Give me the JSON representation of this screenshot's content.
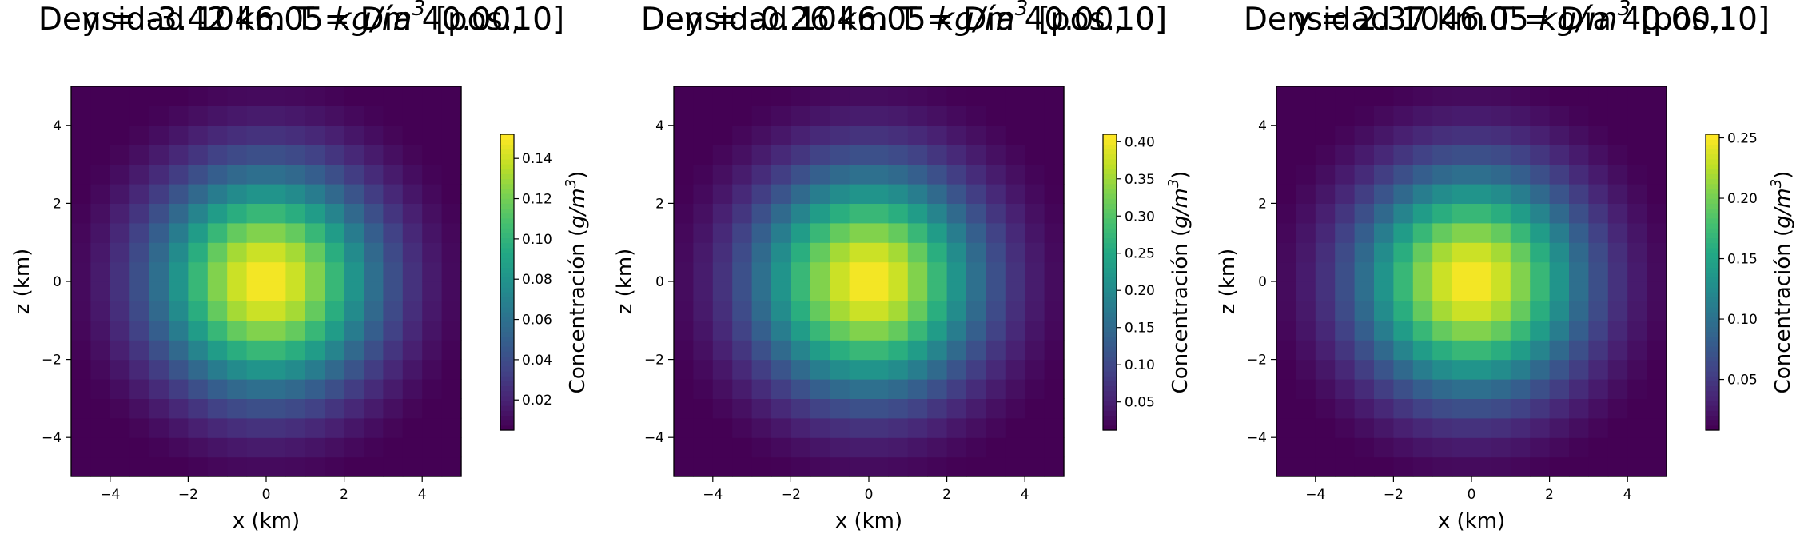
{
  "chart_data": [
    {
      "type": "heatmap",
      "title_line1": "y = -3.42 km  T = Día 40.00,",
      "title_line2_prefix": "Densidad 1046.05 ",
      "title_unit": "kg/m",
      "title_unit_exp": "3",
      "title_line2_suffix": " [pos.10]",
      "xlabel": "x (km)",
      "ylabel": "z (km)",
      "xlim": [
        -5,
        5
      ],
      "ylim": [
        -5,
        5
      ],
      "x_ticks": [
        "−4",
        "−2",
        "0",
        "2",
        "4"
      ],
      "y_ticks": [
        "−4",
        "−2",
        "0",
        "2",
        "4"
      ],
      "grid_cells": 20,
      "center": [
        0,
        0
      ],
      "sigma_km": 2.0,
      "peak": 0.152,
      "colorbar": {
        "label_prefix": "Concentración (",
        "label_unit": "g/m",
        "label_exp": "3",
        "label_suffix": ")",
        "range": [
          0.005,
          0.152
        ],
        "ticks": [
          "0.02",
          "0.04",
          "0.06",
          "0.08",
          "0.10",
          "0.12",
          "0.14"
        ],
        "tick_values": [
          0.02,
          0.04,
          0.06,
          0.08,
          0.1,
          0.12,
          0.14
        ]
      },
      "colormap": "viridis"
    },
    {
      "type": "heatmap",
      "title_line1": "y = -0.26 km  T = Día 40.00,",
      "title_line2_prefix": "Densidad 1046.05 ",
      "title_unit": "kg/m",
      "title_unit_exp": "3",
      "title_line2_suffix": " [pos.10]",
      "xlabel": "x (km)",
      "ylabel": "z (km)",
      "xlim": [
        -5,
        5
      ],
      "ylim": [
        -5,
        5
      ],
      "x_ticks": [
        "−4",
        "−2",
        "0",
        "2",
        "4"
      ],
      "y_ticks": [
        "−4",
        "−2",
        "0",
        "2",
        "4"
      ],
      "grid_cells": 20,
      "center": [
        0,
        0
      ],
      "sigma_km": 2.0,
      "peak": 0.41,
      "colorbar": {
        "label_prefix": "Concentración (",
        "label_unit": "g/m",
        "label_exp": "3",
        "label_suffix": ")",
        "range": [
          0.012,
          0.41
        ],
        "ticks": [
          "0.05",
          "0.10",
          "0.15",
          "0.20",
          "0.25",
          "0.30",
          "0.35",
          "0.40"
        ],
        "tick_values": [
          0.05,
          0.1,
          0.15,
          0.2,
          0.25,
          0.3,
          0.35,
          0.4
        ]
      },
      "colormap": "viridis"
    },
    {
      "type": "heatmap",
      "title_line1": "y = 2.37 km  T = Día 40.00,",
      "title_line2_prefix": "Densidad 1046.05 ",
      "title_unit": "kg/m",
      "title_unit_exp": "3",
      "title_line2_suffix": " [pos.10]",
      "xlabel": "x (km)",
      "ylabel": "z (km)",
      "xlim": [
        -5,
        5
      ],
      "ylim": [
        -5,
        5
      ],
      "x_ticks": [
        "−4",
        "−2",
        "0",
        "2",
        "4"
      ],
      "y_ticks": [
        "−4",
        "−2",
        "0",
        "2",
        "4"
      ],
      "grid_cells": 20,
      "center": [
        0,
        0
      ],
      "sigma_km": 2.0,
      "peak": 0.253,
      "colorbar": {
        "label_prefix": "Concentración (",
        "label_unit": "g/m",
        "label_exp": "3",
        "label_suffix": ")",
        "range": [
          0.008,
          0.253
        ],
        "ticks": [
          "0.05",
          "0.10",
          "0.15",
          "0.20",
          "0.25"
        ],
        "tick_values": [
          0.05,
          0.1,
          0.15,
          0.2,
          0.25
        ]
      },
      "colormap": "viridis"
    }
  ]
}
